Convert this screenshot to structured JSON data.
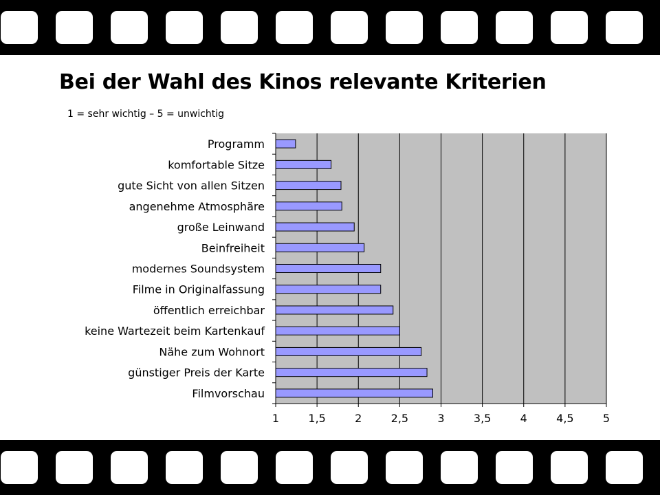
{
  "title": "Bei der Wahl des Kinos relevante Kriterien",
  "subtitle": "1 = sehr wichtig – 5 = unwichtig",
  "colors": {
    "film": "#000000",
    "plot_background": "#c0c0c0",
    "bar_fill": "#9999ff",
    "bar_stroke": "#000000",
    "gridline": "#000000"
  },
  "chart_data": {
    "type": "bar",
    "orientation": "horizontal",
    "categories": [
      "Programm",
      "komfortable Sitze",
      "gute Sicht von allen Sitzen",
      "angenehme Atmosphäre",
      "große Leinwand",
      "Beinfreiheit",
      "modernes Soundsystem",
      "Filme in Originalfassung",
      "öffentlich erreichbar",
      "keine Wartezeit beim Kartenkauf",
      "Nähe zum Wohnort",
      "günstiger Preis der Karte",
      "Filmvorschau"
    ],
    "values": [
      1.24,
      1.67,
      1.79,
      1.8,
      1.95,
      2.07,
      2.27,
      2.27,
      2.42,
      2.5,
      2.76,
      2.83,
      2.9
    ],
    "xlim": [
      1,
      5
    ],
    "xticks": [
      1,
      1.5,
      2,
      2.5,
      3,
      3.5,
      4,
      4.5,
      5
    ],
    "xtick_labels": [
      "1",
      "1,5",
      "2",
      "2,5",
      "3",
      "3,5",
      "4",
      "4,5",
      "5"
    ],
    "grid": true
  }
}
